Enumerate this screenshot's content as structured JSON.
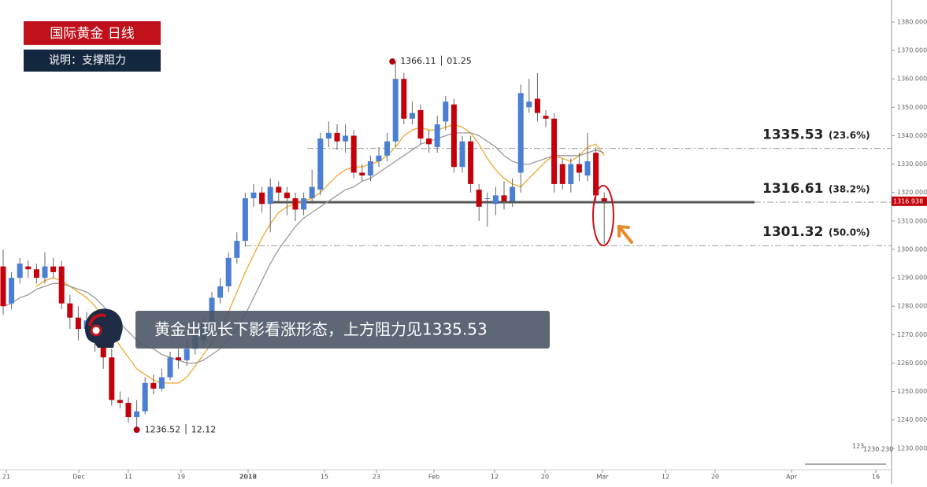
{
  "chart_data": {
    "type": "candlestick",
    "title": "国际黄金  日线",
    "subtitle": "说明：支撑阻力",
    "x_tick_labels": [
      "21",
      "Dec",
      "11",
      "19",
      "2018",
      "15",
      "23",
      "Feb",
      "12",
      "20",
      "Mar",
      "12",
      "20",
      "Apr",
      "16"
    ],
    "open": [
      1294,
      1281,
      1290,
      1294,
      1293,
      1290,
      1294,
      1294,
      1281,
      1276,
      1272,
      1275,
      1268,
      1262,
      1247,
      1246,
      1241,
      1243,
      1253,
      1251,
      1255,
      1262,
      1261,
      1265,
      1268,
      1274,
      1283,
      1287,
      1297,
      1303,
      1318,
      1320,
      1316,
      1322,
      1320,
      1318,
      1314,
      1318,
      1321,
      1339,
      1341,
      1338,
      1340,
      1327,
      1326,
      1331,
      1333,
      1338,
      1360,
      1346,
      1349,
      1339,
      1336,
      1345,
      1351,
      1329,
      1338,
      1321,
      1318,
      1316,
      1319,
      1317,
      1327,
      1350,
      1353,
      1347,
      1346,
      1330,
      1323,
      1330,
      1326,
      1334,
      1318
    ],
    "high": [
      1300,
      1292,
      1297,
      1296,
      1295,
      1299,
      1297,
      1296,
      1284,
      1280,
      1278,
      1277,
      1271,
      1265,
      1250,
      1248,
      1247,
      1255,
      1256,
      1258,
      1264,
      1265,
      1268,
      1272,
      1276,
      1285,
      1290,
      1299,
      1306,
      1320,
      1323,
      1322,
      1325,
      1324,
      1322,
      1320,
      1320,
      1328,
      1341,
      1345,
      1344,
      1344,
      1342,
      1330,
      1333,
      1336,
      1341,
      1366.11,
      1362,
      1352,
      1351,
      1342,
      1347,
      1354,
      1353,
      1340,
      1340,
      1323,
      1320,
      1322,
      1324,
      1325,
      1358,
      1360,
      1362,
      1349,
      1348,
      1332,
      1332,
      1334,
      1341,
      1336,
      1320
    ],
    "low": [
      1277,
      1279,
      1288,
      1290,
      1288,
      1288,
      1290,
      1279,
      1272,
      1268,
      1270,
      1264,
      1258,
      1245,
      1244,
      1239,
      1236.52,
      1242,
      1249,
      1250,
      1254,
      1258,
      1259,
      1263,
      1266,
      1272,
      1281,
      1285,
      1295,
      1301,
      1315,
      1313,
      1306,
      1317,
      1312,
      1310,
      1312,
      1316,
      1319,
      1336,
      1335,
      1334,
      1325,
      1324,
      1324,
      1329,
      1331,
      1336,
      1344,
      1344,
      1337,
      1334,
      1334,
      1342,
      1327,
      1327,
      1320,
      1310,
      1308,
      1312,
      1314,
      1315,
      1320,
      1348,
      1345,
      1343,
      1320,
      1321,
      1320,
      1324,
      1324,
      1317,
      1302
    ],
    "close": [
      1280,
      1290,
      1295,
      1293,
      1290,
      1294,
      1292,
      1281,
      1276,
      1272,
      1275,
      1268,
      1262,
      1247,
      1246,
      1241,
      1243,
      1253,
      1251,
      1255,
      1262,
      1261,
      1265,
      1270,
      1274,
      1283,
      1287,
      1297,
      1303,
      1318,
      1320,
      1316,
      1322,
      1320,
      1318,
      1314,
      1318,
      1322,
      1339,
      1341,
      1338,
      1340,
      1327,
      1326,
      1331,
      1333,
      1338,
      1360,
      1346,
      1348,
      1339,
      1337,
      1344,
      1352,
      1329,
      1338,
      1323,
      1315,
      1318,
      1319,
      1317,
      1322,
      1355,
      1352,
      1348,
      1346,
      1323,
      1323,
      1330,
      1327,
      1331,
      1319,
      1316.938
    ],
    "up_color": "#4a7fd4",
    "down_color": "#c4000b",
    "moving_averages": [
      {
        "color": "#f0a830",
        "values": [
          null,
          null,
          null,
          null,
          1287,
          1289,
          1290,
          1289,
          1287,
          1285,
          1283,
          1280,
          1276,
          1271,
          1266,
          1262,
          1258,
          1256,
          1254,
          1253,
          1253,
          1253,
          1255,
          1259,
          1263,
          1267,
          1272,
          1278,
          1285,
          1292,
          1298,
          1304,
          1309,
          1313,
          1315,
          1316,
          1317,
          1318,
          1320,
          1323,
          1326,
          1328,
          1329,
          1329,
          1330,
          1331,
          1333,
          1336,
          1340,
          1342,
          1343,
          1342,
          1342,
          1343,
          1344,
          1343,
          1341,
          1337,
          1332,
          1328,
          1325,
          1323,
          1322,
          1325,
          1328,
          1331,
          1333,
          1332,
          1331,
          1333,
          1336,
          1337,
          1333
        ]
      },
      {
        "color": "#9a9a9a",
        "values": [
          1280,
          1281,
          1283,
          1284,
          1286,
          1287,
          1288,
          1288,
          1287,
          1286,
          1285,
          1283,
          1280,
          1277,
          1274,
          1271,
          1268,
          1266,
          1265,
          1263,
          1262,
          1261,
          1260,
          1260,
          1261,
          1263,
          1265,
          1268,
          1272,
          1277,
          1283,
          1289,
          1295,
          1300,
          1304,
          1308,
          1311,
          1313,
          1315,
          1317,
          1319,
          1321,
          1322,
          1324,
          1325,
          1327,
          1329,
          1331,
          1333,
          1335,
          1337,
          1338,
          1339,
          1340,
          1341,
          1341,
          1341,
          1340,
          1338,
          1336,
          1333,
          1331,
          1330,
          1330,
          1331,
          1332,
          1333,
          1333,
          1333,
          1333,
          1334,
          1335,
          1334
        ]
      }
    ],
    "ylim": [
      1217.5,
      1387.75
    ],
    "yticks": [
      {
        "value": 1230,
        "label": "1230.000"
      },
      {
        "value": 1240,
        "label": "1240.000"
      },
      {
        "value": 1250,
        "label": "1250.000"
      },
      {
        "value": 1260,
        "label": "1260.000"
      },
      {
        "value": 1270,
        "label": "1270.000"
      },
      {
        "value": 1280,
        "label": "1280.000"
      },
      {
        "value": 1290,
        "label": "1290.000"
      },
      {
        "value": 1300,
        "label": "1300.000"
      },
      {
        "value": 1310,
        "label": "1310.000"
      },
      {
        "value": 1320,
        "label": "1320.000"
      },
      {
        "value": 1330,
        "label": "1330.000"
      },
      {
        "value": 1340,
        "label": "1340.000"
      },
      {
        "value": 1350,
        "label": "1350.000"
      },
      {
        "value": 1360,
        "label": "1360.000"
      },
      {
        "value": 1370,
        "label": "1370.000"
      },
      {
        "value": 1380,
        "label": "1380.000"
      }
    ],
    "levels": [
      {
        "value": 1335.53,
        "ratio": "(23.6%)",
        "style": "dashdot"
      },
      {
        "value": 1316.61,
        "ratio": "(38.2%)",
        "style": "solid"
      },
      {
        "value": 1301.32,
        "ratio": "(50.0%)",
        "style": "dashdot"
      }
    ],
    "high_note": "1366.11 │ 01.25",
    "low_note": "1236.52 │ 12.12",
    "comment": "黄金出现长下影看涨形态，上方阻力见1335.53",
    "corner_texts": [
      "123",
      "1230.230"
    ]
  }
}
